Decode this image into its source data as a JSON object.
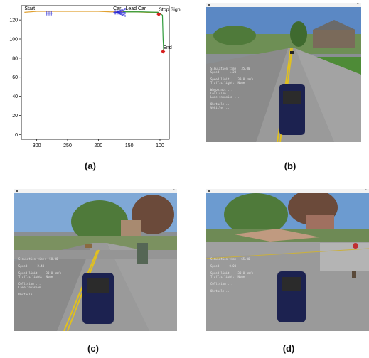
{
  "panels": {
    "a": {
      "caption": "(a)"
    },
    "b": {
      "caption": "(b)"
    },
    "c": {
      "caption": "(c)"
    },
    "d": {
      "caption": "(d)"
    }
  },
  "chart_data": {
    "type": "line",
    "title": "",
    "xlabel": "",
    "ylabel": "",
    "xlim": [
      325,
      85
    ],
    "ylim": [
      -5,
      135
    ],
    "x_ticks": [
      300,
      250,
      200,
      150,
      100
    ],
    "y_ticks": [
      0,
      20,
      40,
      60,
      80,
      100,
      120
    ],
    "grid": false,
    "annotations": [
      {
        "text": "Start",
        "x": 320,
        "y": 129
      },
      {
        "text": "Car",
        "x": 176,
        "y": 129
      },
      {
        "text": "Lead Car",
        "x": 156,
        "y": 129
      },
      {
        "text": "Stop Sign",
        "x": 102,
        "y": 128
      },
      {
        "text": "End",
        "x": 95,
        "y": 88
      }
    ],
    "series": [
      {
        "color": "#e0a030",
        "x": [
          320,
          300,
          250,
          200,
          180,
          160,
          140,
          120,
          103
        ],
        "y": [
          128,
          129,
          129,
          129,
          128.5,
          128.5,
          128.5,
          128,
          128
        ]
      },
      {
        "color": "#2e9a3a",
        "x": [
          160,
          130,
          103,
          96,
          95,
          94
        ],
        "y": [
          128.5,
          128.5,
          128,
          125,
          100,
          87
        ]
      }
    ],
    "markers": [
      {
        "color": "#d62020",
        "x": 102,
        "y": 126
      },
      {
        "color": "#d62020",
        "x": 95,
        "y": 87
      },
      {
        "color": "#2b2bd6",
        "x": 280,
        "y": 127
      },
      {
        "color": "#2b2bd6",
        "x": 170,
        "y": 128
      }
    ]
  }
}
